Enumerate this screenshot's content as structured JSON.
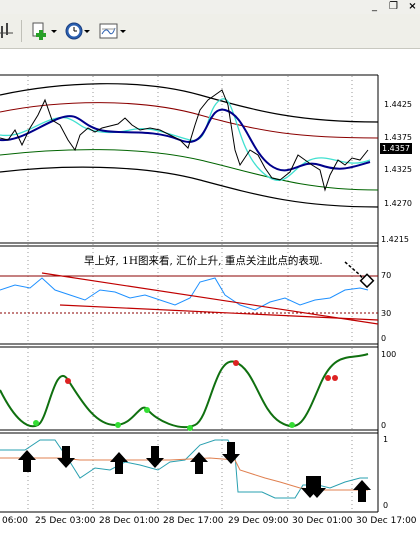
{
  "window": {
    "minimize_label": "_",
    "restore_label": "❐",
    "close_label": "×"
  },
  "toolbar": {
    "icons": [
      "chart-tool-icon",
      "add-indicator-icon",
      "periodicity-clock-icon",
      "template-icon"
    ]
  },
  "main_chart": {
    "price_ticks": [
      "1.4425",
      "1.4375",
      "1.4325",
      "1.4270"
    ],
    "current_price": "1.4357"
  },
  "rsi_panel": {
    "ticks": [
      "1.4215",
      "70",
      "30",
      "0"
    ],
    "annotation": "早上好, 1H图来看, 汇价上升, 重点关注此点的表现."
  },
  "osc_panel": {
    "ticks": [
      "100",
      "0"
    ]
  },
  "signal_panel": {
    "ticks": [
      "1",
      "0"
    ]
  },
  "time_axis": [
    "06:00",
    "25 Dec 03:00",
    "28 Dec 01:00",
    "28 Dec 17:00",
    "29 Dec 09:00",
    "30 Dec 01:00",
    "30 Dec 17:00"
  ],
  "colors": {
    "bg": "#ffffff",
    "band_outer": "#000000",
    "band_mid": "#8b0000",
    "band_low": "#006400",
    "ma_blue": "#00008b",
    "ma_cyan": "#40e0d0",
    "rsi_line": "#1e90ff",
    "trend_red": "#c00000",
    "osc_green": "#107010",
    "signal_teal": "#2aa0b0",
    "signal_orange": "#e08050"
  }
}
